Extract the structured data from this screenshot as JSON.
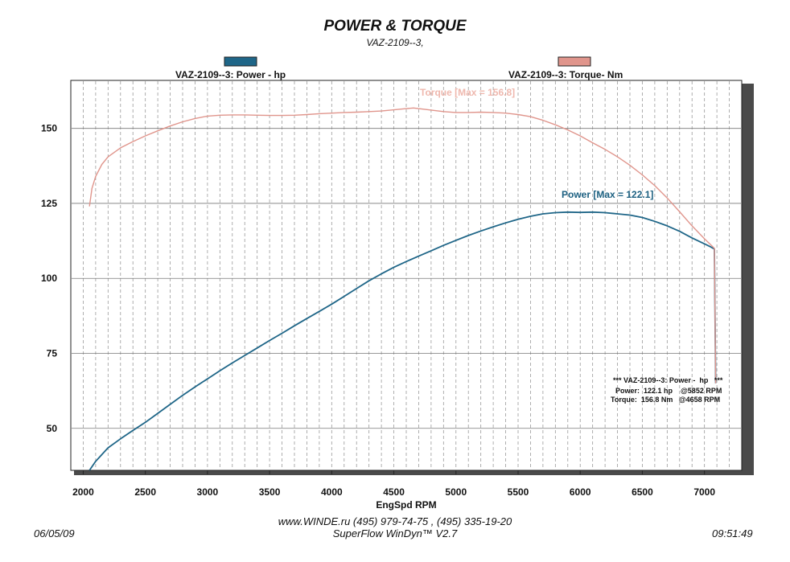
{
  "header": {
    "title": "POWER & TORQUE",
    "subtitle": "VAZ-2109--3,"
  },
  "footer": {
    "contacts": "www.WINDE.ru  (495) 979-74-75 , (495) 335-19-20",
    "software": "SuperFlow WinDyn™ V2.7",
    "date": "06/05/09",
    "time": "09:51:49"
  },
  "chart_data": {
    "type": "line",
    "xlabel": "EngSpd  RPM",
    "ylabel": "",
    "xlim": [
      1900,
      7300
    ],
    "ylim": [
      36,
      166
    ],
    "xticks": [
      2000,
      2500,
      3000,
      3500,
      4000,
      4500,
      5000,
      5500,
      6000,
      6500,
      7000
    ],
    "yticks": [
      50,
      75,
      100,
      125,
      150
    ],
    "grid": true,
    "colors": {
      "power": "#1f6688",
      "torque": "#e0958c",
      "power_text": "#1b5f80",
      "torque_text": "#efb8ae"
    },
    "series": [
      {
        "name": "VAZ-2109--3: Power -  hp",
        "key": "power",
        "x": [
          2050,
          2100,
          2200,
          2300,
          2400,
          2500,
          2600,
          2700,
          2800,
          2900,
          3000,
          3100,
          3200,
          3300,
          3400,
          3500,
          3600,
          3700,
          3800,
          3900,
          4000,
          4100,
          4200,
          4300,
          4400,
          4500,
          4600,
          4700,
          4800,
          4900,
          5000,
          5100,
          5200,
          5300,
          5400,
          5500,
          5600,
          5700,
          5800,
          5900,
          6000,
          6100,
          6200,
          6300,
          6400,
          6500,
          6600,
          6700,
          6800,
          6900,
          7000,
          7050,
          7080,
          7090
        ],
        "y": [
          36,
          39,
          43.5,
          46.5,
          49.3,
          52,
          55,
          58,
          61,
          63.8,
          66.5,
          69.2,
          71.8,
          74.3,
          76.8,
          79.3,
          81.7,
          84.2,
          86.6,
          89,
          91.4,
          94,
          96.6,
          99.2,
          101.5,
          103.7,
          105.6,
          107.4,
          109.2,
          111,
          112.7,
          114.3,
          115.8,
          117.2,
          118.5,
          119.7,
          120.7,
          121.5,
          121.9,
          122.1,
          122,
          122.1,
          121.9,
          121.5,
          121.1,
          120.3,
          119,
          117.5,
          115.7,
          113.5,
          111.5,
          110.5,
          109.8,
          65
        ]
      },
      {
        "name": "VAZ-2109--3: Torque-  Nm",
        "key": "torque",
        "x": [
          2050,
          2070,
          2100,
          2150,
          2200,
          2300,
          2400,
          2500,
          2600,
          2700,
          2800,
          2900,
          3000,
          3100,
          3200,
          3300,
          3400,
          3500,
          3600,
          3700,
          3800,
          3900,
          4000,
          4100,
          4200,
          4300,
          4400,
          4500,
          4600,
          4658,
          4700,
          4800,
          4900,
          5000,
          5100,
          5200,
          5300,
          5400,
          5500,
          5600,
          5700,
          5800,
          5900,
          6000,
          6100,
          6200,
          6300,
          6400,
          6500,
          6600,
          6700,
          6800,
          6900,
          7000,
          7050,
          7080,
          7090
        ],
        "y": [
          124,
          130,
          134,
          138,
          140.5,
          143.5,
          145.6,
          147.5,
          149.2,
          150.8,
          152.2,
          153.3,
          154.1,
          154.4,
          154.5,
          154.5,
          154.4,
          154.3,
          154.3,
          154.4,
          154.6,
          154.9,
          155.1,
          155.3,
          155.4,
          155.6,
          155.8,
          156.2,
          156.6,
          156.8,
          156.6,
          156.1,
          155.6,
          155.3,
          155.3,
          155.4,
          155.3,
          155.1,
          154.6,
          153.9,
          152.7,
          151.2,
          149.5,
          147.5,
          145.2,
          143,
          140.5,
          137.7,
          134.5,
          130.9,
          126.8,
          122.2,
          117.5,
          113.2,
          111.2,
          110,
          65
        ]
      }
    ],
    "legend": [
      {
        "label": "VAZ-2109--3: Power -  hp",
        "key": "power",
        "position": "top-left"
      },
      {
        "label": "VAZ-2109--3: Torque-  Nm",
        "key": "torque",
        "position": "top-right"
      }
    ],
    "annotations": {
      "power_max": {
        "text": "Power  [Max = 122.1]",
        "value": 122.1,
        "rpm": 5852
      },
      "torque_max": {
        "text": "Torque [Max = 156.8]",
        "value": 156.8,
        "rpm": 4658
      },
      "summary": [
        "*** VAZ-2109--3: Power -  hp   ***",
        "Power:  122.1 hp    @5852 RPM",
        "Torque:  156.8 Nm   @4658 RPM"
      ]
    }
  }
}
